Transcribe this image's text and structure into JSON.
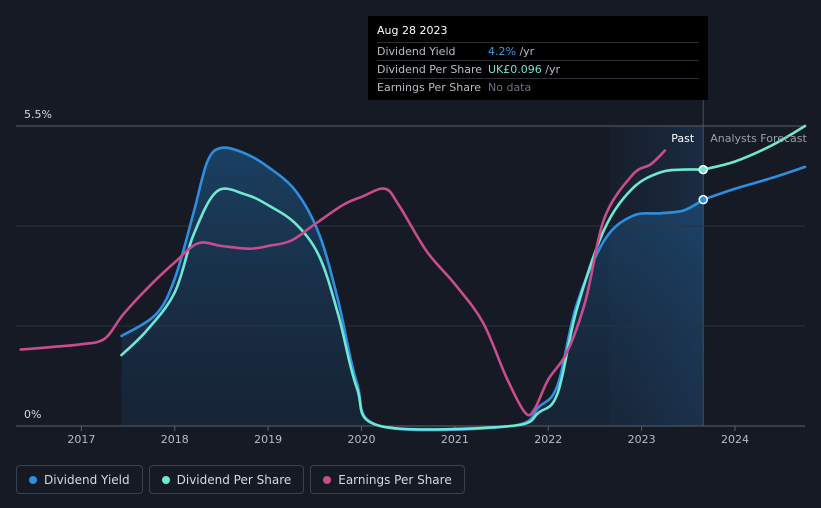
{
  "tooltip": {
    "date": "Aug 28 2023",
    "rows": [
      {
        "label": "Dividend Yield",
        "value": "4.2%",
        "unit": " /yr",
        "color": "#3b9de8"
      },
      {
        "label": "Dividend Per Share",
        "value": "UK£0.096",
        "unit": " /yr",
        "color": "#6fe7d3"
      },
      {
        "label": "Earnings Per Share",
        "value": "No data",
        "unit": "",
        "color": "#6b7280"
      }
    ]
  },
  "chart_data": {
    "type": "line",
    "title": "",
    "xlabel": "",
    "ylabel": "",
    "ylim": [
      0,
      5.5
    ],
    "xlim": [
      2016.3,
      2024.75
    ],
    "y_tick_labels": [
      {
        "value": 5.5,
        "label": "5.5%"
      },
      {
        "value": 0,
        "label": "0%"
      }
    ],
    "x_ticks": [
      2017,
      2018,
      2019,
      2020,
      2021,
      2022,
      2023,
      2024
    ],
    "past_label": "Past",
    "forecast_label": "Analysts Forecast",
    "past_region": [
      2022.65,
      2023.66
    ],
    "forecast_start": 2023.66,
    "series": [
      {
        "name": "Dividend Yield",
        "color": "#2e8fe0",
        "filled": true,
        "points": [
          [
            2017.43,
            1.65
          ],
          [
            2017.8,
            2.05
          ],
          [
            2018.0,
            2.7
          ],
          [
            2018.2,
            3.9
          ],
          [
            2018.35,
            4.85
          ],
          [
            2018.5,
            5.1
          ],
          [
            2018.75,
            5.0
          ],
          [
            2019.0,
            4.75
          ],
          [
            2019.3,
            4.3
          ],
          [
            2019.55,
            3.5
          ],
          [
            2019.75,
            2.3
          ],
          [
            2019.95,
            0.8
          ],
          [
            2020.2,
            0.0
          ],
          [
            2021.6,
            0.0
          ],
          [
            2021.9,
            0.35
          ],
          [
            2022.1,
            0.75
          ],
          [
            2022.3,
            2.2
          ],
          [
            2022.6,
            3.4
          ],
          [
            2022.9,
            3.85
          ],
          [
            2023.2,
            3.9
          ],
          [
            2023.45,
            3.95
          ],
          [
            2023.66,
            4.15
          ]
        ],
        "forecast": [
          [
            2023.66,
            4.15
          ],
          [
            2024.0,
            4.35
          ],
          [
            2024.4,
            4.55
          ],
          [
            2024.75,
            4.75
          ]
        ]
      },
      {
        "name": "Dividend Per Share",
        "color": "#6fe7d3",
        "filled": false,
        "points": [
          [
            2017.43,
            1.3
          ],
          [
            2017.7,
            1.75
          ],
          [
            2018.0,
            2.45
          ],
          [
            2018.2,
            3.5
          ],
          [
            2018.45,
            4.3
          ],
          [
            2018.75,
            4.25
          ],
          [
            2019.0,
            4.05
          ],
          [
            2019.3,
            3.7
          ],
          [
            2019.55,
            3.1
          ],
          [
            2019.75,
            2.05
          ],
          [
            2019.95,
            0.7
          ],
          [
            2020.2,
            0.0
          ],
          [
            2021.6,
            0.0
          ],
          [
            2021.9,
            0.25
          ],
          [
            2022.1,
            0.6
          ],
          [
            2022.3,
            2.1
          ],
          [
            2022.6,
            3.6
          ],
          [
            2022.9,
            4.35
          ],
          [
            2023.2,
            4.65
          ],
          [
            2023.45,
            4.7
          ],
          [
            2023.66,
            4.7
          ]
        ],
        "forecast": [
          [
            2023.66,
            4.7
          ],
          [
            2024.0,
            4.85
          ],
          [
            2024.4,
            5.15
          ],
          [
            2024.75,
            5.5
          ]
        ]
      },
      {
        "name": "Earnings Per Share",
        "color": "#c94d8e",
        "filled": false,
        "points": [
          [
            2016.35,
            1.4
          ],
          [
            2016.7,
            1.45
          ],
          [
            2017.0,
            1.5
          ],
          [
            2017.25,
            1.6
          ],
          [
            2017.45,
            2.05
          ],
          [
            2017.75,
            2.6
          ],
          [
            2018.0,
            3.0
          ],
          [
            2018.25,
            3.35
          ],
          [
            2018.5,
            3.3
          ],
          [
            2018.8,
            3.25
          ],
          [
            2019.0,
            3.3
          ],
          [
            2019.25,
            3.4
          ],
          [
            2019.5,
            3.7
          ],
          [
            2019.8,
            4.05
          ],
          [
            2020.0,
            4.2
          ],
          [
            2020.25,
            4.35
          ],
          [
            2020.4,
            4.05
          ],
          [
            2020.7,
            3.2
          ],
          [
            2021.0,
            2.6
          ],
          [
            2021.3,
            1.9
          ],
          [
            2021.55,
            0.9
          ],
          [
            2021.75,
            0.25
          ],
          [
            2021.85,
            0.3
          ],
          [
            2022.0,
            0.85
          ],
          [
            2022.2,
            1.35
          ],
          [
            2022.4,
            2.3
          ],
          [
            2022.6,
            3.8
          ],
          [
            2022.9,
            4.6
          ],
          [
            2023.1,
            4.8
          ],
          [
            2023.25,
            5.05
          ]
        ],
        "forecast": []
      }
    ],
    "markers": [
      {
        "series": "Dividend Per Share",
        "x": 2023.66,
        "y": 4.7,
        "color": "#6fe7d3"
      },
      {
        "series": "Dividend Yield",
        "x": 2023.66,
        "y": 4.15,
        "color": "#2e8fe0"
      }
    ]
  },
  "legend": [
    {
      "label": "Dividend Yield",
      "color": "#2e8fe0"
    },
    {
      "label": "Dividend Per Share",
      "color": "#6fe7d3"
    },
    {
      "label": "Earnings Per Share",
      "color": "#c94d8e"
    }
  ]
}
